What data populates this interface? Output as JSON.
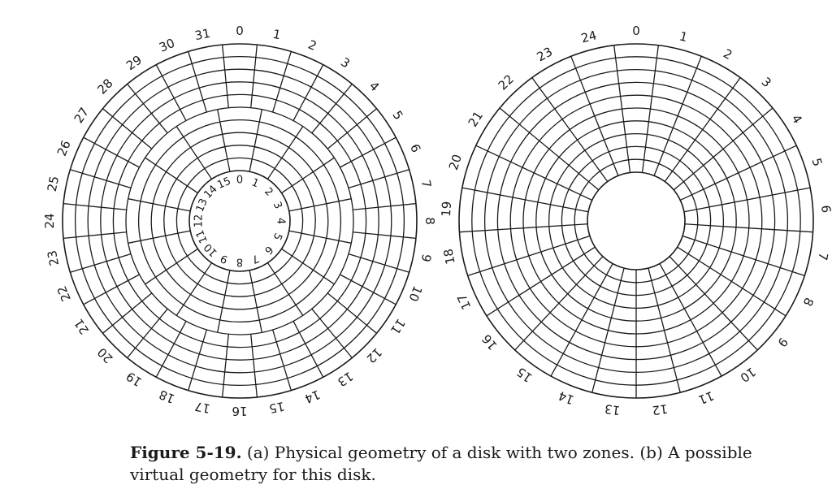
{
  "figure": {
    "disk_a": {
      "tracks": 10,
      "outer_zone": {
        "tracks": 5,
        "sectors": 32
      },
      "inner_zone": {
        "tracks": 5,
        "sectors": 16
      },
      "outer_labels": [
        "0",
        "1",
        "2",
        "3",
        "4",
        "5",
        "6",
        "7",
        "8",
        "9",
        "10",
        "11",
        "12",
        "13",
        "14",
        "15",
        "16",
        "17",
        "18",
        "19",
        "20",
        "21",
        "22",
        "23",
        "24",
        "25",
        "26",
        "27",
        "28",
        "29",
        "30",
        "31"
      ],
      "inner_labels": [
        "0",
        "1",
        "2",
        "3",
        "4",
        "5",
        "6",
        "7",
        "8",
        "9",
        "10",
        "11",
        "12",
        "13",
        "14",
        "15"
      ]
    },
    "disk_b": {
      "tracks": 10,
      "sectors": 25,
      "labels": [
        "0",
        "1",
        "2",
        "3",
        "4",
        "5",
        "6",
        "7",
        "8",
        "9",
        "10",
        "11",
        "12",
        "13",
        "14",
        "15",
        "16",
        "17",
        "18",
        "19",
        "20",
        "21",
        "22",
        "23",
        "24"
      ]
    }
  },
  "caption": {
    "label": "Figure 5-19.",
    "text": "(a) Physical geometry of a disk with two zones. (b) A possible virtual geometry for this disk."
  }
}
